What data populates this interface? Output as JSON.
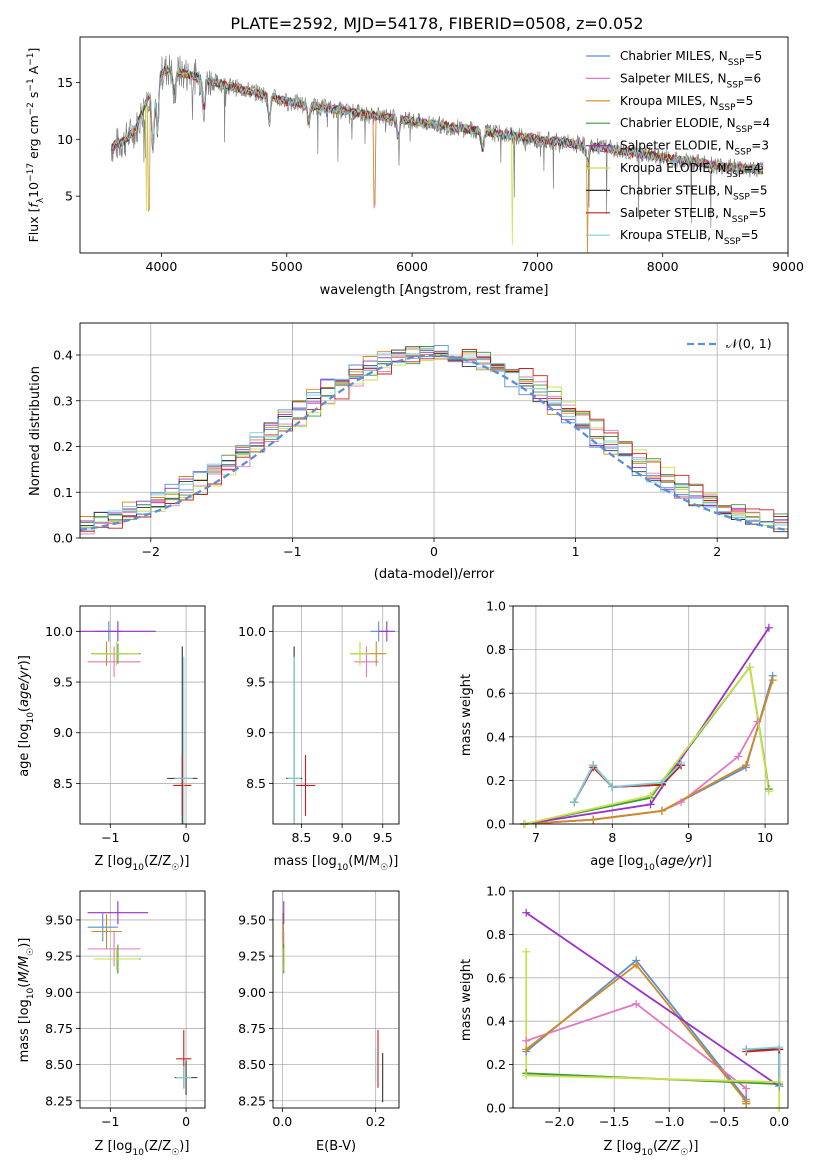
{
  "figure": {
    "title": "PLATE=2592, MJD=54178, FIBERID=0508, z=0.052"
  },
  "colors": {
    "Chabrier MILES": "#5b8fd6",
    "Salpeter MILES": "#e377c2",
    "Kroupa MILES": "#d18a1e",
    "Chabrier ELODIE": "#3a9a3a",
    "Salpeter ELODIE": "#9b30c8",
    "Kroupa ELODIE": "#c8e04a",
    "Chabrier STELIB": "#333333",
    "Salpeter STELIB": "#c81e1e",
    "Kroupa STELIB": "#7fd0dc",
    "data": "#808080",
    "normal": "#5b8fd6"
  },
  "chart_data": [
    {
      "id": "spectrum",
      "type": "line",
      "xlabel": "wavelength [Angstrom, rest frame]",
      "ylabel": "Flux [f",
      "ylabel_parts": {
        "a": "Flux [f",
        "b": "λ",
        "c": "10",
        "d": "−17",
        "e": " erg cm",
        "f": "−2",
        "g": " s",
        "h": "−1",
        "i": " A",
        "j": "−1",
        "k": "]"
      },
      "xlim": [
        3350,
        9000
      ],
      "ylim": [
        0,
        19
      ],
      "xticks": [
        4000,
        5000,
        6000,
        7000,
        8000,
        9000
      ],
      "yticks": [
        5,
        10,
        15
      ],
      "xtick_labels": [
        "4000",
        "5000",
        "6000",
        "7000",
        "8000",
        "9000"
      ],
      "ytick_labels": [
        "5",
        "10",
        "15"
      ],
      "legend": [
        {
          "name": "Chabrier MILES",
          "label": "Chabrier MILES, N",
          "sub": "SSP",
          "suffix": "=5"
        },
        {
          "name": "Salpeter MILES",
          "label": "Salpeter MILES, N",
          "sub": "SSP",
          "suffix": "=6"
        },
        {
          "name": "Kroupa MILES",
          "label": "Kroupa MILES, N",
          "sub": "SSP",
          "suffix": "=5"
        },
        {
          "name": "Chabrier ELODIE",
          "label": "Chabrier ELODIE, N",
          "sub": "SSP",
          "suffix": "=4"
        },
        {
          "name": "Salpeter ELODIE",
          "label": "Salpeter ELODIE, N",
          "sub": "SSP",
          "suffix": "=3"
        },
        {
          "name": "Kroupa ELODIE",
          "label": "Kroupa ELODIE, N",
          "sub": "SSP",
          "suffix": "=4"
        },
        {
          "name": "Chabrier STELIB",
          "label": "Chabrier STELIB, N",
          "sub": "SSP",
          "suffix": "=5"
        },
        {
          "name": "Salpeter STELIB",
          "label": "Salpeter STELIB, N",
          "sub": "SSP",
          "suffix": "=5"
        },
        {
          "name": "Kroupa STELIB",
          "label": "Kroupa STELIB, N",
          "sub": "SSP",
          "suffix": "=5"
        }
      ],
      "continuum": [
        [
          3600,
          9.3
        ],
        [
          3700,
          9.8
        ],
        [
          3800,
          11.0
        ],
        [
          3850,
          12.5
        ],
        [
          3950,
          15.4
        ],
        [
          4050,
          16.2
        ],
        [
          4300,
          15.4
        ],
        [
          4500,
          14.8
        ],
        [
          4800,
          14.0
        ],
        [
          5000,
          13.3
        ],
        [
          5500,
          12.4
        ],
        [
          6000,
          11.6
        ],
        [
          6500,
          10.8
        ],
        [
          7000,
          10.0
        ],
        [
          7500,
          9.3
        ],
        [
          8000,
          8.4
        ],
        [
          8500,
          7.6
        ],
        [
          8800,
          7.3
        ]
      ]
    },
    {
      "id": "residuals",
      "type": "line",
      "xlabel": "(data-model)/error",
      "ylabel": "Normed distribution",
      "xlim": [
        -2.5,
        2.5
      ],
      "ylim": [
        0,
        0.47
      ],
      "xticks": [
        -2,
        -1,
        0,
        1,
        2
      ],
      "xtick_labels": [
        "−2",
        "−1",
        "0",
        "1",
        "2"
      ],
      "yticks": [
        0,
        0.1,
        0.2,
        0.3,
        0.4
      ],
      "ytick_labels": [
        "0.0",
        "0.1",
        "0.2",
        "0.3",
        "0.4"
      ],
      "legend_label": "𝒩(0, 1)",
      "normal": {
        "mu": 0,
        "sigma": 1
      }
    },
    {
      "id": "age-vs-Z",
      "type": "scatter",
      "xlabel": "Z [log",
      "xlabel_parts": {
        "a": "Z [log",
        "b": "10",
        "c": "(Z/Z",
        "d": "☉",
        "e": ")]"
      },
      "ylabel_parts": {
        "a": "age  [log",
        "b": "10",
        "c": "(age/yr)]"
      },
      "xlim": [
        -1.4,
        0.25
      ],
      "ylim": [
        8.1,
        10.25
      ],
      "xticks": [
        -1,
        0
      ],
      "xtick_labels": [
        "−1",
        "0"
      ],
      "yticks": [
        8.5,
        9.0,
        9.5,
        10.0
      ],
      "ytick_labels": [
        "8.5",
        "9.0",
        "9.5",
        "10.0"
      ],
      "points": [
        {
          "s": "Chabrier MILES",
          "x": -1.02,
          "y": 10.0,
          "xe": 0.18,
          "ye": 0.1
        },
        {
          "s": "Salpeter MILES",
          "x": -0.95,
          "y": 9.7,
          "xe": 0.35,
          "ye": 0.15
        },
        {
          "s": "Kroupa MILES",
          "x": -1.05,
          "y": 9.78,
          "xe": 0.2,
          "ye": 0.12
        },
        {
          "s": "Chabrier ELODIE",
          "x": -0.9,
          "y": 9.78,
          "xe": 0.3,
          "ye": 0.1
        },
        {
          "s": "Salpeter ELODIE",
          "x": -0.9,
          "y": 10.0,
          "xe": 0.5,
          "ye": 0.1
        },
        {
          "s": "Kroupa ELODIE",
          "x": -0.92,
          "y": 9.78,
          "xe": 0.3,
          "ye": 0.12
        },
        {
          "s": "Chabrier STELIB",
          "x": -0.05,
          "y": 8.55,
          "xe": 0.2,
          "ye": 1.3
        },
        {
          "s": "Salpeter STELIB",
          "x": -0.05,
          "y": 8.48,
          "xe": 0.12,
          "ye": 0.3
        },
        {
          "s": "Kroupa STELIB",
          "x": -0.03,
          "y": 8.55,
          "xe": 0.12,
          "ye": 1.2
        }
      ]
    },
    {
      "id": "age-vs-mass",
      "type": "scatter",
      "xlabel_parts": {
        "a": "mass [log",
        "b": "10",
        "c": "(M/M",
        "d": "☉",
        "e": ")]"
      },
      "xlim": [
        8.15,
        9.7
      ],
      "ylim": [
        8.1,
        10.25
      ],
      "xticks": [
        8.5,
        9.0,
        9.5
      ],
      "xtick_labels": [
        "8.5",
        "9.0",
        "9.5"
      ],
      "yticks": [
        8.5,
        9.0,
        9.5,
        10.0
      ],
      "ytick_labels": [
        "8.5",
        "9.0",
        "9.5",
        "10.0"
      ],
      "points": [
        {
          "s": "Chabrier MILES",
          "x": 9.45,
          "y": 10.0,
          "xe": 0.1,
          "ye": 0.1
        },
        {
          "s": "Salpeter MILES",
          "x": 9.3,
          "y": 9.7,
          "xe": 0.15,
          "ye": 0.15
        },
        {
          "s": "Kroupa MILES",
          "x": 9.42,
          "y": 9.78,
          "xe": 0.12,
          "ye": 0.12
        },
        {
          "s": "Chabrier ELODIE",
          "x": 9.22,
          "y": 9.78,
          "xe": 0.12,
          "ye": 0.1
        },
        {
          "s": "Salpeter ELODIE",
          "x": 9.55,
          "y": 10.0,
          "xe": 0.1,
          "ye": 0.1
        },
        {
          "s": "Kroupa ELODIE",
          "x": 9.22,
          "y": 9.78,
          "xe": 0.12,
          "ye": 0.12
        },
        {
          "s": "Chabrier STELIB",
          "x": 8.41,
          "y": 8.55,
          "xe": 0.1,
          "ye": 1.3
        },
        {
          "s": "Salpeter STELIB",
          "x": 8.55,
          "y": 8.48,
          "xe": 0.12,
          "ye": 0.3
        },
        {
          "s": "Kroupa STELIB",
          "x": 8.41,
          "y": 8.55,
          "xe": 0.08,
          "ye": 1.2
        }
      ]
    },
    {
      "id": "massweight-vs-age",
      "type": "line",
      "xlabel_parts": {
        "a": "age  [log",
        "b": "10",
        "c": "(age/yr)]"
      },
      "ylabel": "mass weight",
      "xlim": [
        6.7,
        10.3
      ],
      "ylim": [
        0,
        1.0
      ],
      "xticks": [
        7,
        8,
        9,
        10
      ],
      "xtick_labels": [
        "7",
        "8",
        "9",
        "10"
      ],
      "yticks": [
        0,
        0.2,
        0.4,
        0.6,
        0.8,
        1.0
      ],
      "ytick_labels": [
        "0.0",
        "0.2",
        "0.4",
        "0.6",
        "0.8",
        "1.0"
      ],
      "series": [
        {
          "name": "Chabrier MILES",
          "x": [
            6.85,
            7.75,
            8.65,
            9.75,
            10.1
          ],
          "y": [
            0.0,
            0.02,
            0.06,
            0.26,
            0.68
          ]
        },
        {
          "name": "Salpeter MILES",
          "x": [
            6.85,
            7.75,
            8.65,
            8.9,
            9.65,
            9.9
          ],
          "y": [
            0.0,
            0.02,
            0.06,
            0.1,
            0.31,
            0.47
          ]
        },
        {
          "name": "Kroupa MILES",
          "x": [
            6.85,
            7.75,
            8.65,
            9.75,
            10.1
          ],
          "y": [
            0.0,
            0.02,
            0.06,
            0.27,
            0.66
          ]
        },
        {
          "name": "Chabrier ELODIE",
          "x": [
            6.85,
            8.5,
            9.8,
            10.05
          ],
          "y": [
            0.0,
            0.12,
            0.72,
            0.16
          ]
        },
        {
          "name": "Salpeter ELODIE",
          "x": [
            6.85,
            8.5,
            10.05
          ],
          "y": [
            0.0,
            0.09,
            0.9
          ]
        },
        {
          "name": "Kroupa ELODIE",
          "x": [
            6.85,
            8.5,
            9.8,
            10.05
          ],
          "y": [
            0.0,
            0.13,
            0.72,
            0.15
          ]
        },
        {
          "name": "Chabrier STELIB",
          "x": [
            7.5,
            7.75,
            8.0,
            8.65,
            8.9
          ],
          "y": [
            0.1,
            0.27,
            0.17,
            0.18,
            0.27
          ]
        },
        {
          "name": "Salpeter STELIB",
          "x": [
            7.5,
            7.75,
            8.0,
            8.65,
            8.9
          ],
          "y": [
            0.1,
            0.26,
            0.17,
            0.18,
            0.27
          ]
        },
        {
          "name": "Kroupa STELIB",
          "x": [
            7.5,
            7.75,
            8.0,
            8.65,
            8.9
          ],
          "y": [
            0.1,
            0.27,
            0.17,
            0.19,
            0.28
          ]
        }
      ]
    },
    {
      "id": "mass-vs-Z",
      "type": "scatter",
      "xlabel_parts": {
        "a": "Z [log",
        "b": "10",
        "c": "(Z/Z",
        "d": "☉",
        "e": ")]"
      },
      "ylabel_parts": {
        "a": "mass [log",
        "b": "10",
        "c": "(M/M",
        "d": "☉",
        "e": ")]"
      },
      "xlim": [
        -1.4,
        0.25
      ],
      "ylim": [
        8.2,
        9.7
      ],
      "xticks": [
        -1,
        0
      ],
      "xtick_labels": [
        "−1",
        "0"
      ],
      "yticks": [
        8.25,
        8.5,
        8.75,
        9.0,
        9.25,
        9.5
      ],
      "ytick_labels": [
        "8.25",
        "8.50",
        "8.75",
        "9.00",
        "9.25",
        "9.50"
      ],
      "points": [
        {
          "s": "Chabrier MILES",
          "x": -1.1,
          "y": 9.45,
          "xe": 0.2,
          "ye": 0.1
        },
        {
          "s": "Salpeter MILES",
          "x": -0.95,
          "y": 9.3,
          "xe": 0.35,
          "ye": 0.12
        },
        {
          "s": "Kroupa MILES",
          "x": -1.05,
          "y": 9.42,
          "xe": 0.2,
          "ye": 0.12
        },
        {
          "s": "Chabrier ELODIE",
          "x": -0.9,
          "y": 9.23,
          "xe": 0.3,
          "ye": 0.1
        },
        {
          "s": "Salpeter ELODIE",
          "x": -0.9,
          "y": 9.55,
          "xe": 0.4,
          "ye": 0.08
        },
        {
          "s": "Kroupa ELODIE",
          "x": -0.92,
          "y": 9.23,
          "xe": 0.3,
          "ye": 0.08
        },
        {
          "s": "Chabrier STELIB",
          "x": 0.0,
          "y": 8.41,
          "xe": 0.15,
          "ye": 0.12
        },
        {
          "s": "Salpeter STELIB",
          "x": -0.03,
          "y": 8.54,
          "xe": 0.1,
          "ye": 0.2
        },
        {
          "s": "Kroupa STELIB",
          "x": -0.03,
          "y": 8.41,
          "xe": 0.1,
          "ye": 0.08
        }
      ]
    },
    {
      "id": "mass-vs-EBV",
      "type": "scatter",
      "xlabel": "E(B-V)",
      "xlim": [
        -0.02,
        0.25
      ],
      "ylim": [
        8.2,
        9.7
      ],
      "xticks": [
        0.0,
        0.2
      ],
      "xtick_labels": [
        "0.0",
        "0.2"
      ],
      "yticks": [
        8.25,
        8.5,
        8.75,
        9.0,
        9.25,
        9.5
      ],
      "ytick_labels": [
        "8.25",
        "8.50",
        "8.75",
        "9.00",
        "9.25",
        "9.50"
      ],
      "points": [
        {
          "s": "Chabrier MILES",
          "x": 0.002,
          "y": 9.45,
          "xe": 0.0,
          "ye": 0.1
        },
        {
          "s": "Salpeter MILES",
          "x": 0.003,
          "y": 9.3,
          "xe": 0.0,
          "ye": 0.12
        },
        {
          "s": "Kroupa MILES",
          "x": 0.002,
          "y": 9.42,
          "xe": 0.0,
          "ye": 0.12
        },
        {
          "s": "Chabrier ELODIE",
          "x": 0.003,
          "y": 9.23,
          "xe": 0.0,
          "ye": 0.1
        },
        {
          "s": "Salpeter ELODIE",
          "x": 0.003,
          "y": 9.55,
          "xe": 0.0,
          "ye": 0.08
        },
        {
          "s": "Kroupa ELODIE",
          "x": 0.004,
          "y": 9.23,
          "xe": 0.0,
          "ye": 0.08
        },
        {
          "s": "Chabrier STELIB",
          "x": 0.215,
          "y": 8.41,
          "xe": 0.0,
          "ye": 0.17
        },
        {
          "s": "Salpeter STELIB",
          "x": 0.205,
          "y": 8.54,
          "xe": 0.0,
          "ye": 0.2
        },
        {
          "s": "Kroupa STELIB",
          "x": 0.2,
          "y": 8.5,
          "xe": 0.0,
          "ye": 0.12
        }
      ]
    },
    {
      "id": "massweight-vs-Z",
      "type": "line",
      "xlabel_parts": {
        "a": "Z [log",
        "b": "10",
        "c": "(Z/Z",
        "d": "☉",
        "e": ")]"
      },
      "ylabel": "mass weight",
      "xlim": [
        -2.42,
        0.08
      ],
      "ylim": [
        0,
        1.0
      ],
      "xticks": [
        -2.0,
        -1.5,
        -1.0,
        -0.5,
        0.0
      ],
      "xtick_labels": [
        "−2.0",
        "−1.5",
        "−1.0",
        "−0.5",
        "0.0"
      ],
      "yticks": [
        0,
        0.2,
        0.4,
        0.6,
        0.8,
        1.0
      ],
      "ytick_labels": [
        "0.0",
        "0.2",
        "0.4",
        "0.6",
        "0.8",
        "1.0"
      ],
      "series": [
        {
          "name": "Chabrier MILES",
          "x": [
            -2.3,
            -1.3,
            -0.3,
            -0.3
          ],
          "y": [
            0.26,
            0.68,
            0.04,
            0.02
          ]
        },
        {
          "name": "Salpeter MILES",
          "x": [
            -2.3,
            -1.3,
            -0.3,
            -0.3
          ],
          "y": [
            0.31,
            0.48,
            0.09,
            0.03
          ]
        },
        {
          "name": "Kroupa MILES",
          "x": [
            -2.3,
            -1.3,
            -0.3,
            -0.3
          ],
          "y": [
            0.27,
            0.66,
            0.03,
            0.02
          ]
        },
        {
          "name": "Chabrier ELODIE",
          "x": [
            -2.3,
            0.0
          ],
          "y": [
            0.16,
            0.11
          ]
        },
        {
          "name": "Salpeter ELODIE",
          "x": [
            -2.3,
            0.0
          ],
          "y": [
            0.9,
            0.1
          ]
        },
        {
          "name": "Kroupa ELODIE",
          "x": [
            -2.3,
            -2.3,
            0.0,
            0.0
          ],
          "y": [
            0.72,
            0.15,
            0.12,
            0.0
          ]
        },
        {
          "name": "Chabrier STELIB",
          "x": [
            -0.3,
            0.0,
            0.0
          ],
          "y": [
            0.27,
            0.27,
            0.1
          ]
        },
        {
          "name": "Salpeter STELIB",
          "x": [
            -0.3,
            0.0,
            0.0
          ],
          "y": [
            0.26,
            0.27,
            0.1
          ]
        },
        {
          "name": "Kroupa STELIB",
          "x": [
            -0.3,
            0.0,
            0.0
          ],
          "y": [
            0.27,
            0.28,
            0.1
          ]
        }
      ]
    }
  ]
}
